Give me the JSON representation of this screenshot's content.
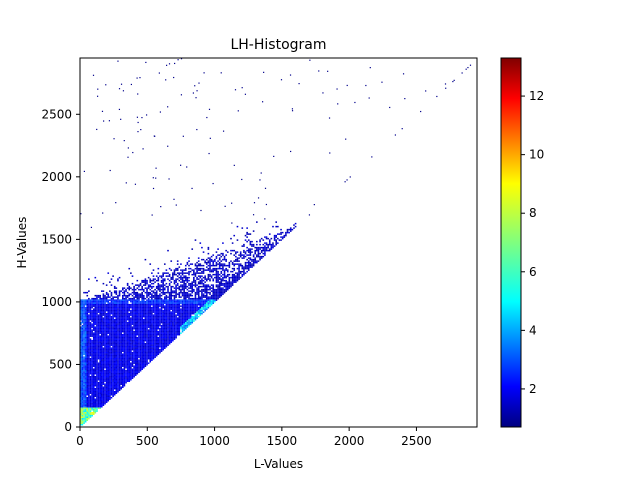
{
  "chart_data": {
    "type": "heatmap",
    "title": "LH-Histogram",
    "xlabel": "L-Values",
    "ylabel": "H-Values",
    "xlim": [
      0,
      2950
    ],
    "ylim": [
      0,
      2950
    ],
    "x_ticks": [
      0,
      500,
      1000,
      1500,
      2000,
      2500
    ],
    "y_ticks": [
      0,
      500,
      1000,
      1500,
      2000,
      2500
    ],
    "colorbar": {
      "colormap": "jet",
      "range": [
        0.7,
        13.3
      ],
      "ticks": [
        2,
        4,
        6,
        8,
        10,
        12
      ]
    },
    "description_of_density": {
      "support": "region with H >= L (upper-left triangle)",
      "high_density_band": {
        "L_range": [
          0,
          1000
        ],
        "H_value": 1000
      },
      "diagonal_peak": {
        "L_range": [
          800,
          1000
        ],
        "level": 5
      },
      "low_corner_peak": {
        "L_range": [
          0,
          150
        ],
        "level": 8
      },
      "sparse_region": {
        "H_range": [
          1600,
          2950
        ]
      }
    }
  },
  "colors": {
    "axis": "#000000",
    "background": "#ffffff"
  }
}
